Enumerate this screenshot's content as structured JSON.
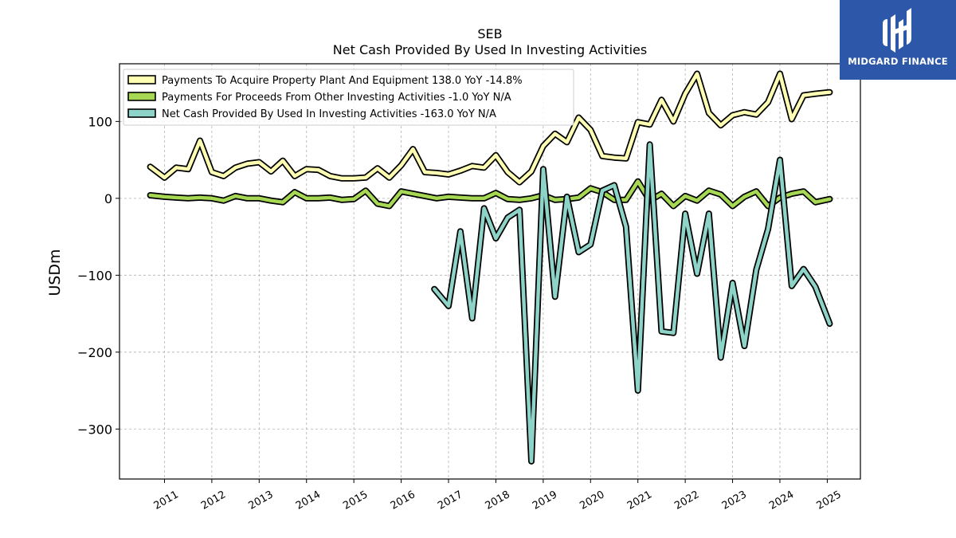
{
  "brand": {
    "name": "MIDGARD FINANCE",
    "background": "#2d57a8"
  },
  "chart_data": {
    "type": "line",
    "title": "SEB",
    "subtitle": "Net Cash Provided By Used In Investing Activities",
    "xlabel": "",
    "ylabel": "USDm",
    "xlim": [
      2010.05,
      2025.7
    ],
    "ylim": [
      -365,
      175
    ],
    "xticks": [
      2011,
      2012,
      2013,
      2014,
      2015,
      2016,
      2017,
      2018,
      2019,
      2020,
      2021,
      2022,
      2023,
      2024,
      2025
    ],
    "xtick_labels": [
      "2011",
      "2012",
      "2013",
      "2014",
      "2015",
      "2016",
      "2017",
      "2018",
      "2019",
      "2020",
      "2021",
      "2022",
      "2023",
      "2024",
      "2025"
    ],
    "yticks": [
      100,
      0,
      -100,
      -200,
      -300
    ],
    "ytick_labels": [
      "100",
      "0",
      "−100",
      "−200",
      "−300"
    ],
    "grid": true,
    "legend_position": "top-left",
    "series": [
      {
        "name": "Payments To Acquire Property Plant And Equipment",
        "legend": "Payments To Acquire Property Plant And Equipment  138.0 YoY -14.8%",
        "color": "#ffffb3",
        "x": [
          2010.7,
          2011.0,
          2011.25,
          2011.5,
          2011.75,
          2012.0,
          2012.25,
          2012.5,
          2012.75,
          2013.0,
          2013.25,
          2013.5,
          2013.75,
          2014.0,
          2014.25,
          2014.5,
          2014.75,
          2015.0,
          2015.25,
          2015.5,
          2015.75,
          2016.0,
          2016.25,
          2016.5,
          2016.75,
          2017.0,
          2017.25,
          2017.5,
          2017.75,
          2018.0,
          2018.25,
          2018.5,
          2018.75,
          2019.0,
          2019.25,
          2019.5,
          2019.75,
          2020.0,
          2020.25,
          2020.5,
          2020.75,
          2021.0,
          2021.25,
          2021.5,
          2021.75,
          2022.0,
          2022.25,
          2022.5,
          2022.75,
          2023.0,
          2023.25,
          2023.5,
          2023.75,
          2024.0,
          2024.25,
          2024.5,
          2024.75,
          2025.05
        ],
        "values": [
          41,
          27,
          40,
          38,
          75,
          34,
          29,
          40,
          45,
          47,
          35,
          49,
          29,
          38,
          37,
          29,
          26,
          26,
          27,
          39,
          27,
          43,
          64,
          34,
          33,
          31,
          36,
          42,
          40,
          56,
          34,
          21,
          35,
          68,
          84,
          73,
          105,
          89,
          55,
          53,
          52,
          99,
          96,
          128,
          100,
          136,
          162,
          111,
          95,
          108,
          112,
          109,
          125,
          162,
          103,
          134,
          136,
          138
        ]
      },
      {
        "name": "Payments For Proceeds From Other Investing Activities",
        "legend": "Payments For Proceeds From Other Investing Activities  -1.0 YoY N/A",
        "color": "#a6d854",
        "x": [
          2010.7,
          2011.0,
          2011.25,
          2011.5,
          2011.75,
          2012.0,
          2012.25,
          2012.5,
          2012.75,
          2013.0,
          2013.25,
          2013.5,
          2013.75,
          2014.0,
          2014.25,
          2014.5,
          2014.75,
          2015.0,
          2015.25,
          2015.5,
          2015.75,
          2016.0,
          2016.25,
          2016.5,
          2016.75,
          2017.0,
          2017.25,
          2017.5,
          2017.75,
          2018.0,
          2018.25,
          2018.5,
          2018.75,
          2019.0,
          2019.25,
          2019.5,
          2019.75,
          2020.0,
          2020.25,
          2020.5,
          2020.75,
          2021.0,
          2021.25,
          2021.5,
          2021.75,
          2022.0,
          2022.25,
          2022.5,
          2022.75,
          2023.0,
          2023.25,
          2023.5,
          2023.75,
          2024.0,
          2024.25,
          2024.5,
          2024.75,
          2025.05
        ],
        "values": [
          4,
          2,
          1,
          0,
          1,
          0,
          -3,
          3,
          0,
          0,
          -3,
          -5,
          8,
          0,
          0,
          1,
          -2,
          -1,
          10,
          -7,
          -10,
          9,
          6,
          3,
          0,
          2,
          1,
          0,
          0,
          7,
          -1,
          -2,
          0,
          4,
          -2,
          -1,
          1,
          13,
          8,
          -2,
          -2,
          22,
          -3,
          6,
          -10,
          3,
          -3,
          10,
          5,
          -10,
          2,
          9,
          -10,
          1,
          6,
          9,
          -5,
          -1
        ]
      },
      {
        "name": "Net Cash Provided By Used In Investing Activities",
        "legend": "Net Cash Provided By Used In Investing Activities  -163.0 YoY N/A",
        "color": "#8dd3c7",
        "x": [
          2016.7,
          2017.0,
          2017.25,
          2017.5,
          2017.75,
          2018.0,
          2018.25,
          2018.5,
          2018.75,
          2019.0,
          2019.25,
          2019.5,
          2019.75,
          2020.0,
          2020.25,
          2020.5,
          2020.75,
          2021.0,
          2021.25,
          2021.5,
          2021.75,
          2022.0,
          2022.25,
          2022.5,
          2022.75,
          2023.0,
          2023.25,
          2023.5,
          2023.75,
          2024.0,
          2024.25,
          2024.5,
          2024.75,
          2025.05
        ],
        "values": [
          -118,
          -140,
          -43,
          -156,
          -13,
          -52,
          -25,
          -15,
          -342,
          38,
          -128,
          2,
          -70,
          -60,
          10,
          17,
          -37,
          -250,
          70,
          -173,
          -175,
          -20,
          -98,
          -20,
          -207,
          -110,
          -192,
          -93,
          -40,
          50,
          -114,
          -92,
          -115,
          -163
        ]
      }
    ]
  }
}
